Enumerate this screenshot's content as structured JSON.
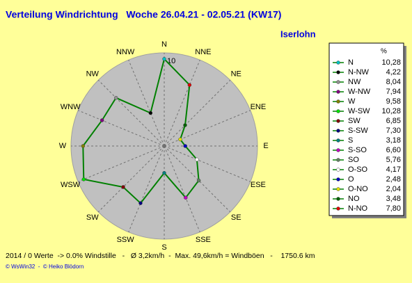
{
  "chart_data": {
    "type": "radar",
    "title": "Verteilung Windrichtung   Woche 26.04.21 - 02.05.21 (KW17)",
    "location": "Iserlohn",
    "categories": [
      "N",
      "NNE",
      "NE",
      "ENE",
      "E",
      "ESE",
      "SE",
      "SSE",
      "S",
      "SSW",
      "SW",
      "WSW",
      "W",
      "WNW",
      "NW",
      "NNW"
    ],
    "values": [
      10.28,
      7.8,
      3.48,
      2.04,
      2.48,
      4.17,
      5.76,
      6.6,
      3.18,
      7.3,
      6.85,
      10.28,
      9.58,
      7.94,
      8.04,
      4.22
    ],
    "value_labels": [
      "10,28",
      "7,80",
      "3,48",
      "2,04",
      "2,48",
      "4,17",
      "5,76",
      "6,60",
      "3,18",
      "7,30",
      "6,85",
      "10,28",
      "9,58",
      "7,94",
      "8,04",
      "4,22"
    ],
    "legend_labels": [
      "N",
      "N-NO",
      "NO",
      "O-NO",
      "O",
      "O-SO",
      "SO",
      "S-SO",
      "S",
      "S-SW",
      "SW",
      "W-SW",
      "W",
      "W-NW",
      "NW",
      "N-NW"
    ],
    "marker_colors": [
      "#00c0c0",
      "#e00000",
      "#006000",
      "#e0e000",
      "#0000c0",
      "#ffffff",
      "#608060",
      "#c000c0",
      "#008080",
      "#000080",
      "#800000",
      "#00e000",
      "#808000",
      "#800080",
      "#909090",
      "#000000"
    ],
    "line_color": "#008000",
    "legend_header": "%",
    "rlim": [
      0,
      11
    ],
    "rticks": [
      10
    ],
    "footer": "2014 / 0 Werte  -> 0.0% Windstille   -   Ø 3,2km/h  -  Max. 49,6km/h = Windböen   -    1750.6 km",
    "credits": "© WsWin32  -  © Heiko Blödorn"
  }
}
